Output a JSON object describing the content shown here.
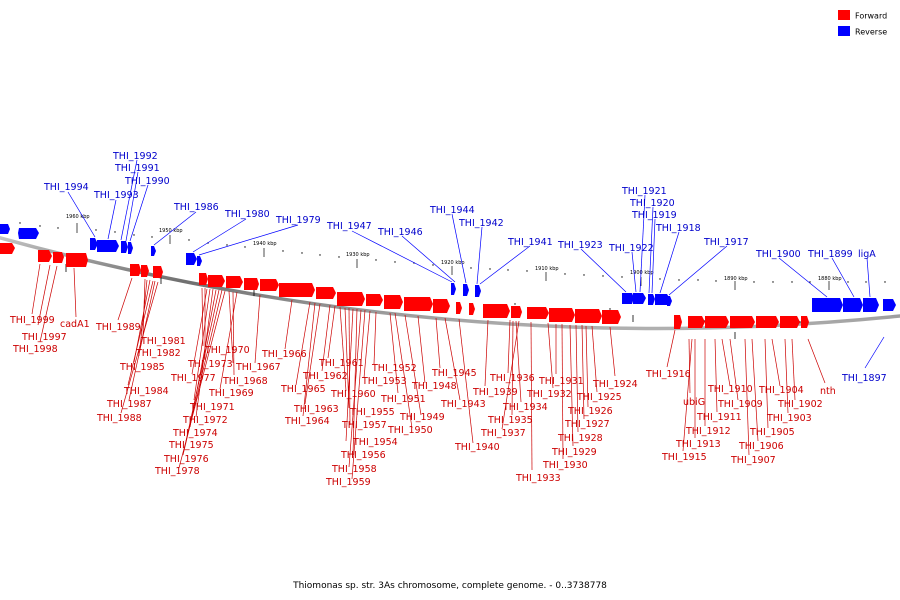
{
  "legend": {
    "forward_label": "Forward",
    "reverse_label": "Reverse",
    "forward_color": "#ff0000",
    "reverse_color": "#0000ff"
  },
  "caption": "Thiomonas sp. str. 3As chromosome, complete genome. - 0..3738778",
  "scale": {
    "ticks": [
      {
        "label": "1960 kbp",
        "kbp": 1960
      },
      {
        "label": "1950 kbp",
        "kbp": 1950
      },
      {
        "label": "1940 kbp",
        "kbp": 1940
      },
      {
        "label": "1930 kbp",
        "kbp": 1930
      },
      {
        "label": "1920 kbp",
        "kbp": 1920
      },
      {
        "label": "1910 kbp",
        "kbp": 1910
      },
      {
        "label": "1900 kbp",
        "kbp": 1900
      },
      {
        "label": "1890 kbp",
        "kbp": 1890
      },
      {
        "label": "1880 kbp",
        "kbp": 1880
      }
    ]
  },
  "forward_genes": [
    "THI_1999",
    "THI_1997",
    "THI_1998",
    "cadA1",
    "THI_1989",
    "THI_1981",
    "THI_1982",
    "THI_1985",
    "THI_1984",
    "THI_1987",
    "THI_1988",
    "THI_1970",
    "THI_1973",
    "THI_1977",
    "THI_1967",
    "THI_1968",
    "THI_1969",
    "THI_1971",
    "THI_1972",
    "THI_1974",
    "THI_1975",
    "THI_1976",
    "THI_1978",
    "THI_1966",
    "THI_1965",
    "THI_1964",
    "THI_1963",
    "THI_1962",
    "THI_1961",
    "THI_1960",
    "THI_1955",
    "THI_1957",
    "THI_1954",
    "THI_1956",
    "THI_1958",
    "THI_1959",
    "THI_1953",
    "THI_1952",
    "THI_1951",
    "THI_1950",
    "THI_1949",
    "THI_1948",
    "THI_1945",
    "THI_1943",
    "THI_1940",
    "THI_1939",
    "THI_1936",
    "THI_1935",
    "THI_1934",
    "THI_1937",
    "THI_1933",
    "THI_1932",
    "THI_1931",
    "THI_1930",
    "THI_1929",
    "THI_1928",
    "THI_1927",
    "THI_1926",
    "THI_1925",
    "THI_1924",
    "THI_1916",
    "ubiG",
    "THI_1915",
    "THI_1913",
    "THI_1912",
    "THI_1911",
    "THI_1910",
    "THI_1909",
    "THI_1907",
    "THI_1906",
    "THI_1905",
    "THI_1904",
    "THI_1903",
    "THI_1902",
    "nth"
  ],
  "reverse_genes": [
    "THI_1994",
    "THI_1993",
    "THI_1992",
    "THI_1991",
    "THI_1990",
    "THI_1986",
    "THI_1980",
    "THI_1979",
    "THI_1947",
    "THI_1946",
    "THI_1944",
    "THI_1942",
    "THI_1941",
    "THI_1923",
    "THI_1922",
    "THI_1921",
    "THI_1920",
    "THI_1919",
    "THI_1918",
    "THI_1917",
    "THI_1900",
    "THI_1899",
    "ligA",
    "THI_1897"
  ]
}
